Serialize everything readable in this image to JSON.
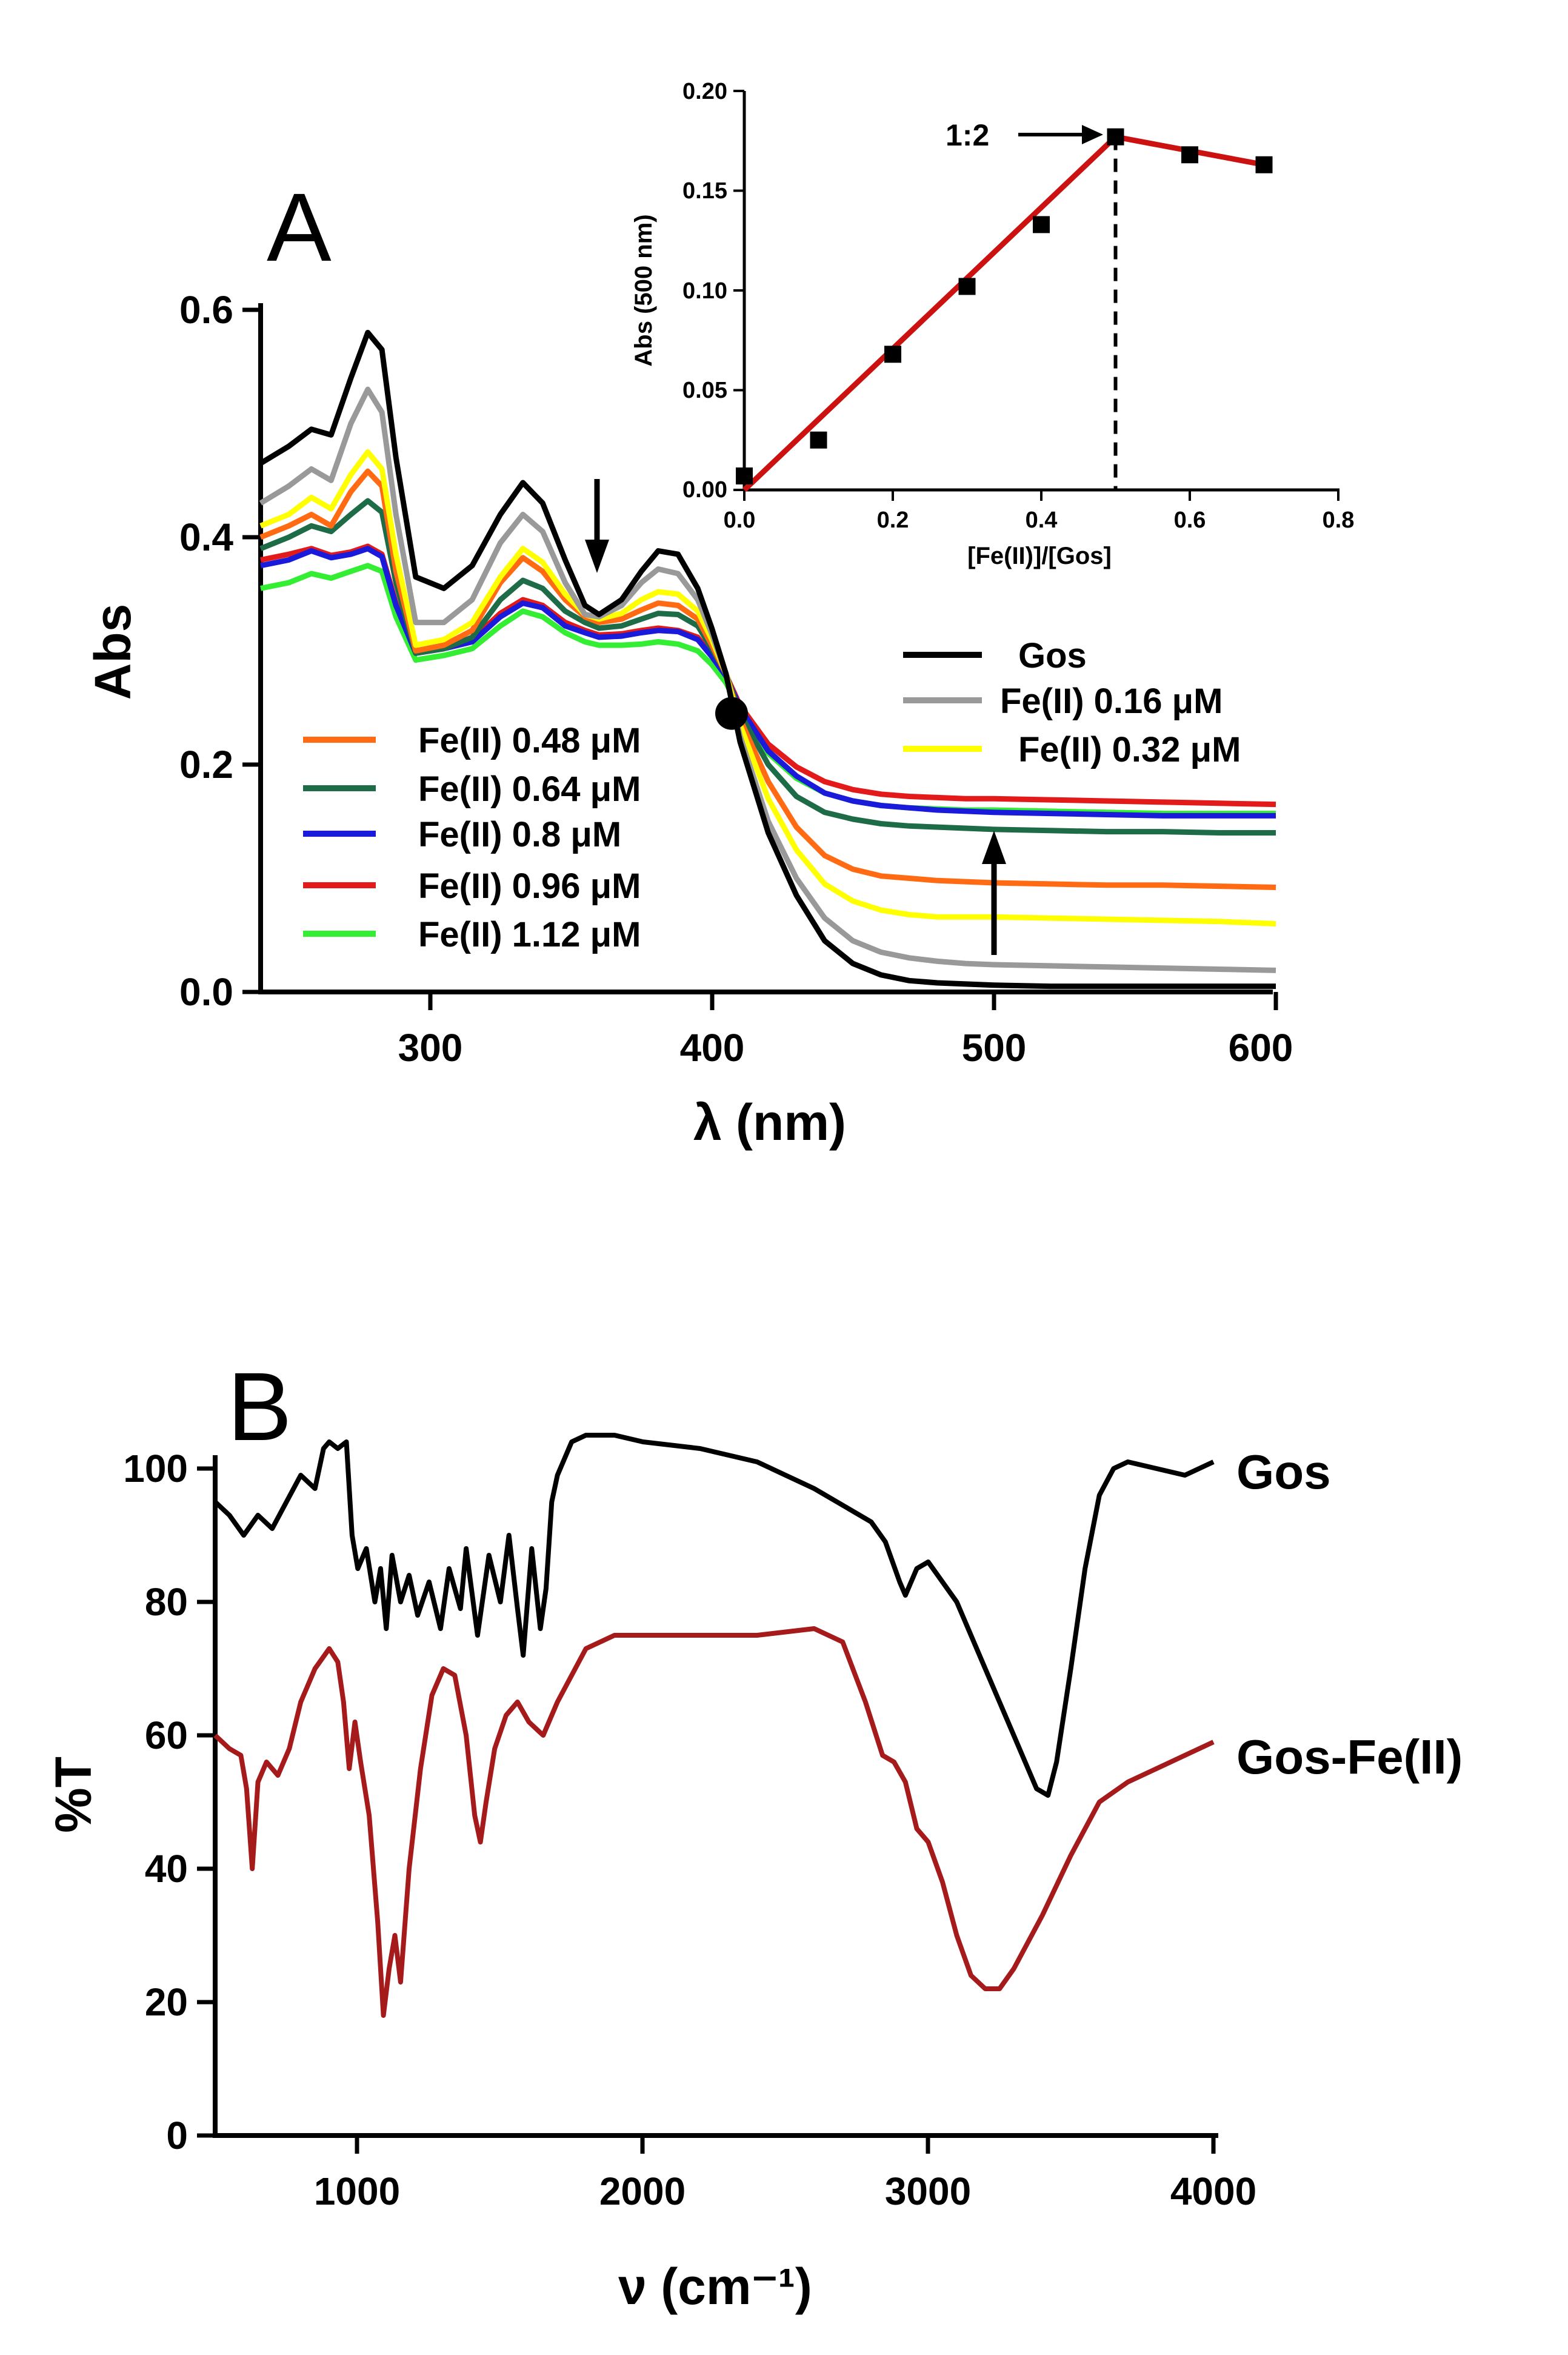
{
  "chart_data": [
    {
      "panel": "A",
      "type": "line",
      "xlabel": "λ (nm)",
      "ylabel": "Abs",
      "xlim": [
        240,
        600
      ],
      "ylim": [
        0,
        0.6
      ],
      "xticks": [
        "300",
        "400",
        "500",
        "600"
      ],
      "yticks": [
        "0.0",
        "0.2",
        "0.4",
        "0.6"
      ],
      "isosbestic_point": {
        "x": 407,
        "y": 0.245
      },
      "arrows": [
        {
          "direction": "down",
          "x": 357,
          "y_from": 0.455,
          "y_to": 0.375
        },
        {
          "direction": "up",
          "x": 500,
          "y_from": 0.03,
          "y_to": 0.13
        }
      ],
      "series": [
        {
          "name": "Gos",
          "color": "#000000",
          "x": [
            240,
            250,
            258,
            265,
            272,
            278,
            283,
            288,
            295,
            305,
            315,
            325,
            333,
            340,
            348,
            355,
            360,
            368,
            375,
            381,
            388,
            395,
            400,
            405,
            410,
            420,
            430,
            440,
            450,
            460,
            470,
            480,
            490,
            500,
            520,
            540,
            560,
            580,
            600
          ],
          "values": [
            0.465,
            0.48,
            0.495,
            0.49,
            0.54,
            0.58,
            0.565,
            0.47,
            0.365,
            0.355,
            0.375,
            0.42,
            0.448,
            0.43,
            0.38,
            0.34,
            0.332,
            0.345,
            0.37,
            0.388,
            0.385,
            0.355,
            0.32,
            0.28,
            0.22,
            0.14,
            0.085,
            0.045,
            0.025,
            0.015,
            0.01,
            0.008,
            0.007,
            0.006,
            0.005,
            0.005,
            0.005,
            0.005,
            0.005
          ]
        },
        {
          "name": "Fe(II) 0.16 μM",
          "color": "#999999",
          "x": [
            240,
            250,
            258,
            265,
            272,
            278,
            283,
            288,
            295,
            305,
            315,
            325,
            333,
            340,
            348,
            355,
            360,
            368,
            375,
            381,
            388,
            395,
            400,
            405,
            410,
            420,
            430,
            440,
            450,
            460,
            470,
            480,
            490,
            500,
            520,
            540,
            560,
            580,
            600
          ],
          "values": [
            0.43,
            0.445,
            0.46,
            0.45,
            0.5,
            0.53,
            0.51,
            0.42,
            0.325,
            0.325,
            0.345,
            0.395,
            0.42,
            0.405,
            0.36,
            0.332,
            0.33,
            0.34,
            0.36,
            0.372,
            0.368,
            0.345,
            0.315,
            0.28,
            0.225,
            0.15,
            0.1,
            0.065,
            0.045,
            0.035,
            0.03,
            0.027,
            0.025,
            0.024,
            0.023,
            0.022,
            0.021,
            0.02,
            0.019
          ]
        },
        {
          "name": "Fe(II) 0.32 μM",
          "color": "#ffff00",
          "x": [
            240,
            250,
            258,
            265,
            272,
            278,
            283,
            288,
            295,
            305,
            315,
            325,
            333,
            340,
            348,
            355,
            360,
            368,
            375,
            381,
            388,
            395,
            400,
            405,
            410,
            420,
            430,
            440,
            450,
            460,
            470,
            480,
            490,
            500,
            520,
            540,
            560,
            580,
            600
          ],
          "values": [
            0.41,
            0.42,
            0.435,
            0.425,
            0.455,
            0.475,
            0.46,
            0.385,
            0.305,
            0.31,
            0.325,
            0.365,
            0.39,
            0.378,
            0.35,
            0.332,
            0.328,
            0.333,
            0.345,
            0.352,
            0.35,
            0.335,
            0.31,
            0.28,
            0.235,
            0.17,
            0.125,
            0.095,
            0.08,
            0.072,
            0.068,
            0.066,
            0.066,
            0.066,
            0.065,
            0.064,
            0.063,
            0.062,
            0.06
          ]
        },
        {
          "name": "Fe(II) 0.48 μM",
          "color": "#ff6a13",
          "x": [
            240,
            250,
            258,
            265,
            272,
            278,
            283,
            288,
            295,
            305,
            315,
            325,
            333,
            340,
            348,
            355,
            360,
            368,
            375,
            381,
            388,
            395,
            400,
            405,
            410,
            420,
            430,
            440,
            450,
            460,
            470,
            480,
            490,
            500,
            520,
            540,
            560,
            580,
            600
          ],
          "values": [
            0.4,
            0.41,
            0.42,
            0.41,
            0.44,
            0.458,
            0.445,
            0.37,
            0.3,
            0.305,
            0.318,
            0.36,
            0.382,
            0.37,
            0.345,
            0.33,
            0.325,
            0.328,
            0.336,
            0.342,
            0.34,
            0.328,
            0.305,
            0.28,
            0.24,
            0.185,
            0.145,
            0.12,
            0.108,
            0.102,
            0.1,
            0.098,
            0.097,
            0.096,
            0.095,
            0.094,
            0.094,
            0.093,
            0.092
          ]
        },
        {
          "name": "Fe(II) 0.64 μM",
          "color": "#1e6b48",
          "x": [
            240,
            250,
            258,
            265,
            272,
            278,
            283,
            288,
            295,
            305,
            315,
            325,
            333,
            340,
            348,
            355,
            360,
            368,
            375,
            381,
            388,
            395,
            400,
            405,
            410,
            420,
            430,
            440,
            450,
            460,
            470,
            480,
            490,
            500,
            520,
            540,
            560,
            580,
            600
          ],
          "values": [
            0.39,
            0.4,
            0.41,
            0.405,
            0.42,
            0.432,
            0.422,
            0.36,
            0.298,
            0.302,
            0.312,
            0.345,
            0.362,
            0.355,
            0.335,
            0.325,
            0.32,
            0.322,
            0.328,
            0.333,
            0.332,
            0.322,
            0.302,
            0.28,
            0.245,
            0.2,
            0.172,
            0.158,
            0.152,
            0.148,
            0.146,
            0.145,
            0.144,
            0.143,
            0.142,
            0.141,
            0.141,
            0.14,
            0.14
          ]
        },
        {
          "name": "Fe(II) 0.8 μM",
          "color": "#1a1adb",
          "x": [
            240,
            250,
            258,
            265,
            272,
            278,
            283,
            288,
            295,
            305,
            315,
            325,
            333,
            340,
            348,
            355,
            360,
            368,
            375,
            381,
            388,
            395,
            400,
            405,
            410,
            420,
            430,
            440,
            450,
            460,
            470,
            480,
            490,
            500,
            520,
            540,
            560,
            580,
            600
          ],
          "values": [
            0.375,
            0.38,
            0.388,
            0.382,
            0.385,
            0.39,
            0.383,
            0.34,
            0.298,
            0.302,
            0.308,
            0.33,
            0.342,
            0.338,
            0.322,
            0.316,
            0.312,
            0.313,
            0.316,
            0.318,
            0.317,
            0.31,
            0.295,
            0.278,
            0.25,
            0.212,
            0.19,
            0.175,
            0.168,
            0.164,
            0.162,
            0.16,
            0.159,
            0.158,
            0.157,
            0.156,
            0.155,
            0.155,
            0.155
          ]
        },
        {
          "name": "Fe(II) 0.96 μM",
          "color": "#e31a1a",
          "x": [
            240,
            250,
            258,
            265,
            272,
            278,
            283,
            288,
            295,
            305,
            315,
            325,
            333,
            340,
            348,
            355,
            360,
            368,
            375,
            381,
            388,
            395,
            400,
            405,
            410,
            420,
            430,
            440,
            450,
            460,
            470,
            480,
            490,
            500,
            520,
            540,
            560,
            580,
            600
          ],
          "values": [
            0.38,
            0.385,
            0.39,
            0.384,
            0.387,
            0.392,
            0.385,
            0.342,
            0.3,
            0.305,
            0.31,
            0.333,
            0.345,
            0.34,
            0.325,
            0.318,
            0.314,
            0.315,
            0.318,
            0.32,
            0.318,
            0.312,
            0.296,
            0.279,
            0.252,
            0.218,
            0.198,
            0.185,
            0.178,
            0.174,
            0.172,
            0.171,
            0.17,
            0.17,
            0.169,
            0.168,
            0.167,
            0.166,
            0.165
          ]
        },
        {
          "name": "Fe(II) 1.12 μM",
          "color": "#33ee33",
          "x": [
            240,
            250,
            258,
            265,
            272,
            278,
            283,
            288,
            295,
            305,
            315,
            325,
            333,
            340,
            348,
            355,
            360,
            368,
            375,
            381,
            388,
            395,
            400,
            405,
            410,
            420,
            430,
            440,
            450,
            460,
            470,
            480,
            490,
            500,
            520,
            540,
            560,
            580,
            600
          ],
          "values": [
            0.355,
            0.36,
            0.368,
            0.364,
            0.37,
            0.375,
            0.37,
            0.33,
            0.292,
            0.296,
            0.302,
            0.322,
            0.335,
            0.33,
            0.316,
            0.308,
            0.305,
            0.305,
            0.306,
            0.308,
            0.306,
            0.3,
            0.288,
            0.272,
            0.248,
            0.21,
            0.188,
            0.175,
            0.168,
            0.164,
            0.162,
            0.161,
            0.16,
            0.16,
            0.159,
            0.158,
            0.157,
            0.157,
            0.157
          ]
        }
      ],
      "inset": {
        "type": "scatter",
        "xlabel": "[Fe(II)]/[Gos]",
        "ylabel": "Abs (500 nm)",
        "xlim": [
          0,
          0.8
        ],
        "ylim": [
          0,
          0.2
        ],
        "xticks": [
          "0.0",
          "0.2",
          "0.4",
          "0.6",
          "0.8"
        ],
        "yticks": [
          "0.00",
          "0.05",
          "0.10",
          "0.15",
          "0.20"
        ],
        "points": {
          "x": [
            0.0,
            0.1,
            0.2,
            0.3,
            0.4,
            0.5,
            0.6,
            0.7
          ],
          "y": [
            0.007,
            0.025,
            0.068,
            0.102,
            0.133,
            0.177,
            0.168,
            0.163
          ]
        },
        "fit_line": {
          "x": [
            0.0,
            0.5,
            0.7
          ],
          "y": [
            0.0,
            0.177,
            0.163
          ],
          "color": "#cc1111"
        },
        "breakpoint_x": 0.5,
        "annotation": "1:2"
      }
    },
    {
      "panel": "B",
      "type": "line",
      "xlabel": "ν (cm⁻¹)",
      "ylabel": "%T",
      "xlim": [
        500,
        4000
      ],
      "ylim": [
        0,
        105
      ],
      "xticks": [
        "1000",
        "2000",
        "3000",
        "4000"
      ],
      "yticks": [
        "0",
        "20",
        "40",
        "60",
        "80",
        "100"
      ],
      "series": [
        {
          "name": "Gos",
          "color": "#000000",
          "x": [
            500,
            550,
            600,
            650,
            700,
            750,
            800,
            850,
            880,
            900,
            930,
            960,
            980,
            1000,
            1030,
            1060,
            1080,
            1100,
            1120,
            1150,
            1180,
            1210,
            1250,
            1290,
            1320,
            1360,
            1380,
            1420,
            1460,
            1500,
            1530,
            1560,
            1580,
            1610,
            1640,
            1660,
            1680,
            1700,
            1750,
            1800,
            1900,
            2000,
            2200,
            2400,
            2600,
            2800,
            2850,
            2900,
            2920,
            2960,
            3000,
            3100,
            3200,
            3300,
            3380,
            3420,
            3450,
            3500,
            3550,
            3600,
            3650,
            3700,
            3800,
            3900,
            4000
          ],
          "values": [
            95,
            93,
            90,
            93,
            91,
            95,
            99,
            97,
            103,
            104,
            103,
            104,
            90,
            85,
            88,
            80,
            85,
            76,
            87,
            80,
            84,
            78,
            83,
            76,
            85,
            79,
            88,
            75,
            87,
            80,
            90,
            79,
            72,
            88,
            76,
            82,
            95,
            99,
            104,
            105,
            105,
            104,
            103,
            101,
            97,
            92,
            89,
            83,
            81,
            85,
            86,
            80,
            70,
            60,
            52,
            51,
            56,
            70,
            85,
            96,
            100,
            101,
            100,
            99,
            101
          ]
        },
        {
          "name": "Gos-Fe(II)",
          "color": "#a51b1b",
          "x": [
            500,
            550,
            590,
            610,
            630,
            650,
            680,
            720,
            760,
            800,
            850,
            900,
            930,
            950,
            970,
            990,
            1010,
            1040,
            1070,
            1090,
            1110,
            1130,
            1150,
            1180,
            1220,
            1260,
            1300,
            1340,
            1380,
            1410,
            1430,
            1450,
            1480,
            1520,
            1560,
            1600,
            1650,
            1700,
            1800,
            1900,
            2000,
            2200,
            2400,
            2600,
            2700,
            2780,
            2840,
            2880,
            2920,
            2960,
            3000,
            3050,
            3100,
            3150,
            3200,
            3250,
            3300,
            3400,
            3500,
            3600,
            3700,
            3800,
            3900,
            4000
          ],
          "values": [
            60,
            58,
            57,
            52,
            40,
            53,
            56,
            54,
            58,
            65,
            70,
            73,
            71,
            65,
            55,
            62,
            56,
            48,
            32,
            18,
            25,
            30,
            23,
            40,
            55,
            66,
            70,
            69,
            60,
            48,
            44,
            50,
            58,
            63,
            65,
            62,
            60,
            65,
            73,
            75,
            75,
            75,
            75,
            76,
            74,
            65,
            57,
            56,
            53,
            46,
            44,
            38,
            30,
            24,
            22,
            22,
            25,
            33,
            42,
            50,
            53,
            55,
            57,
            59
          ]
        }
      ]
    }
  ],
  "panel_a": {
    "label": "A",
    "legend_right": [
      "Gos",
      "Fe(II) 0.16 μM",
      "Fe(II) 0.32 μM"
    ],
    "legend_left": [
      "Fe(II) 0.48 μM",
      "Fe(II) 0.64 μM",
      "Fe(II) 0.8 μM",
      "Fe(II) 0.96 μM",
      "Fe(II) 1.12 μM"
    ]
  },
  "panel_b": {
    "label": "B",
    "label_gos": "Gos",
    "label_gosfe": "Gos-Fe(II)"
  },
  "colors": {
    "axis": "#000000",
    "gos": "#000000",
    "fe016": "#999999",
    "fe032": "#ffff00",
    "fe048": "#ff6a13",
    "fe064": "#1e6b48",
    "fe080": "#1a1adb",
    "fe096": "#e31a1a",
    "fe112": "#33ee33",
    "fit": "#cc1111",
    "gosfe": "#a51b1b"
  }
}
